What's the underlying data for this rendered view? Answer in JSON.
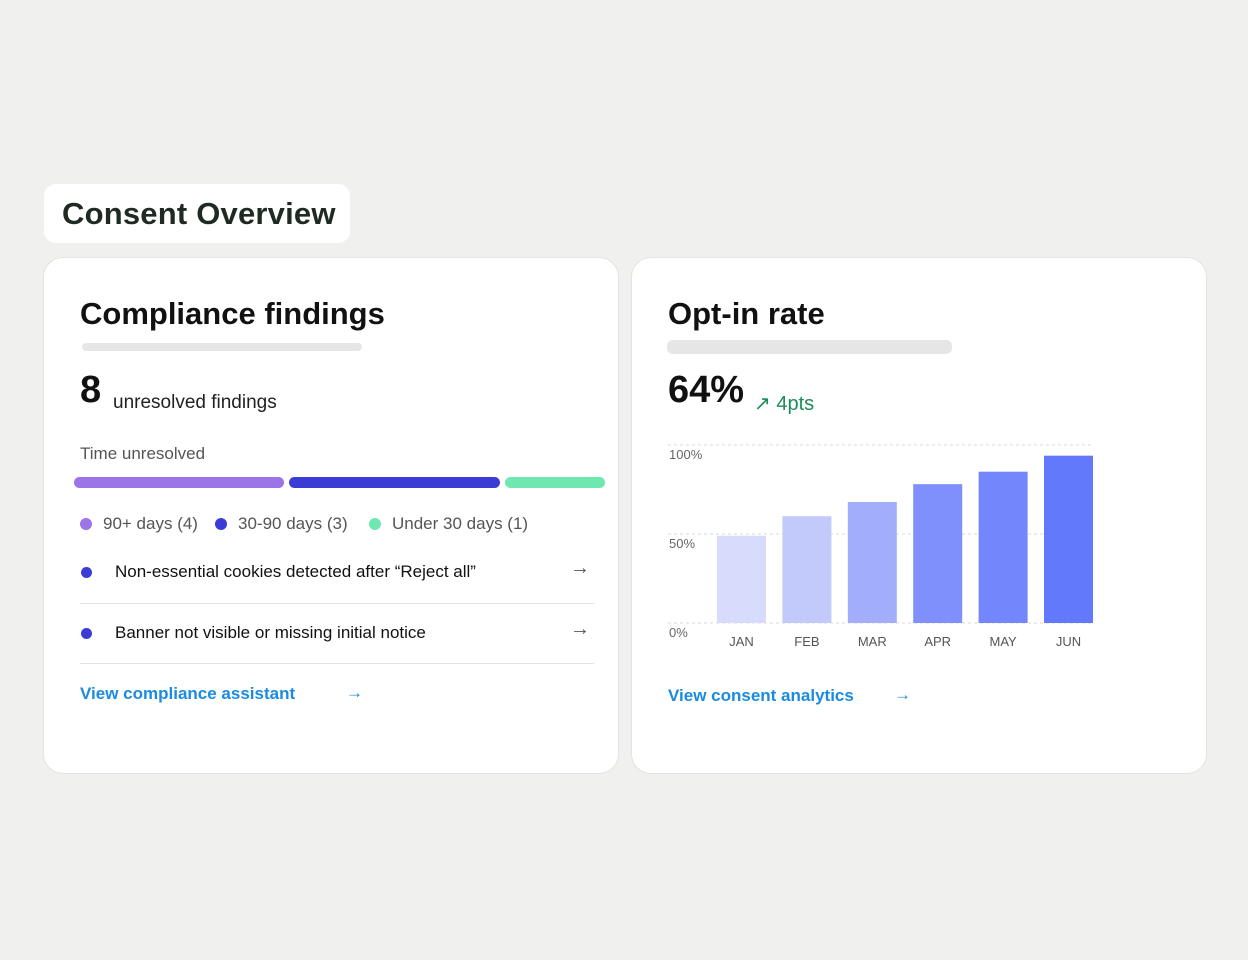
{
  "page": {
    "title": "Consent Overview"
  },
  "compliance": {
    "title": "Compliance findings",
    "count": "8",
    "count_label": "unresolved findings",
    "time_label": "Time unresolved",
    "segments": [
      {
        "label": "90+ days (4)",
        "value": 4,
        "color": "#9b74e8"
      },
      {
        "label": "30-90 days (3)",
        "value": 3,
        "color": "#3b3bd6"
      },
      {
        "label": "Under 30 days (1)",
        "value": 1,
        "color": "#6ee7b0"
      }
    ],
    "findings": [
      {
        "text": "Non-essential cookies detected after “Reject all”",
        "arrow": "→"
      },
      {
        "text": "Banner not visible or missing initial notice",
        "arrow": "→"
      }
    ],
    "link": "View compliance assistant",
    "link_arrow": "→"
  },
  "optin": {
    "title": "Opt-in rate",
    "value": "64%",
    "trend_icon": "↗",
    "trend": "4pts",
    "link": "View consent analytics",
    "link_arrow": "→"
  },
  "chart_data": {
    "type": "bar",
    "categories": [
      "JAN",
      "FEB",
      "MAR",
      "APR",
      "MAY",
      "JUN"
    ],
    "values": [
      49,
      60,
      68,
      78,
      85,
      94
    ],
    "ylim": [
      0,
      100
    ],
    "yticks": [
      "100%",
      "50%",
      "0%"
    ],
    "ytick_values": [
      100,
      50,
      0
    ],
    "colors": [
      "#d8dcfc",
      "#c2c9fb",
      "#a3aefa",
      "#7f8ffb",
      "#7386fb",
      "#6379fc"
    ],
    "grid": true,
    "title": "",
    "xlabel": "",
    "ylabel": ""
  }
}
